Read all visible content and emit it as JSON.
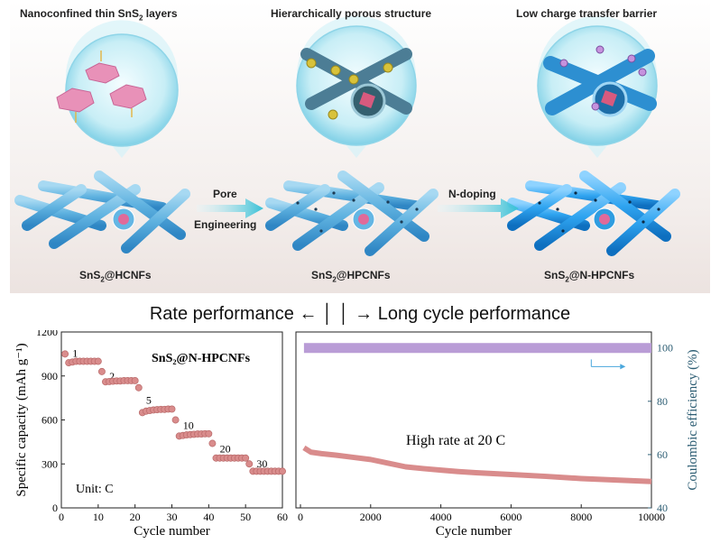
{
  "panels": [
    {
      "title_main": "Nanoconfined thin SnS",
      "title_sub": "2",
      "title_tail": " layers",
      "material_pre": "SnS",
      "material_sub": "2",
      "material_post": "@HCNFs"
    },
    {
      "title_main": "Hierarchically porous structure",
      "title_sub": "",
      "title_tail": "",
      "material_pre": "SnS",
      "material_sub": "2",
      "material_post": "@HPCNFs"
    },
    {
      "title_main": "Low charge transfer barrier",
      "title_sub": "",
      "title_tail": "",
      "material_pre": "SnS",
      "material_sub": "2",
      "material_post": "@N-HPCNFs"
    }
  ],
  "steps": {
    "step1_line1": "Pore",
    "step1_line2": "Engineering",
    "step2": "N-doping"
  },
  "banner": {
    "text": "Rate performance ← │ │ → Long cycle performance"
  },
  "colors": {
    "scatter": "#d98c8c",
    "coulombic": "#b99cd6",
    "accent_blue": "#4aa7dc"
  },
  "chart_data": [
    {
      "type": "scatter",
      "title": "SnS₂@N-HPCNFs",
      "xlabel": "Cycle number",
      "ylabel": "Specific capacity (mAh g⁻¹)",
      "xlim": [
        0,
        60
      ],
      "ylim": [
        0,
        1200
      ],
      "xticks": [
        "0",
        "10",
        "20",
        "30",
        "40",
        "50",
        "60"
      ],
      "yticks": [
        "0",
        "300",
        "600",
        "900",
        "1200"
      ],
      "annotation": "Unit: C",
      "rate_labels": [
        {
          "label": "1",
          "x": 3,
          "y": 1030
        },
        {
          "label": "2",
          "x": 13,
          "y": 875
        },
        {
          "label": "5",
          "x": 23,
          "y": 710
        },
        {
          "label": "10",
          "x": 33,
          "y": 540
        },
        {
          "label": "20",
          "x": 43,
          "y": 378
        },
        {
          "label": "30",
          "x": 53,
          "y": 278
        }
      ],
      "series": [
        {
          "x": [
            1,
            2,
            3,
            4,
            5,
            6,
            7,
            8,
            9,
            10,
            11,
            12,
            13,
            14,
            15,
            16,
            17,
            18,
            19,
            20,
            21,
            22,
            23,
            24,
            25,
            26,
            27,
            28,
            29,
            30,
            31,
            32,
            33,
            34,
            35,
            36,
            37,
            38,
            39,
            40,
            41,
            42,
            43,
            44,
            45,
            46,
            47,
            48,
            49,
            50,
            51,
            52,
            53,
            54,
            55,
            56,
            57,
            58,
            59,
            60
          ],
          "y": [
            1050,
            990,
            995,
            1000,
            1000,
            1000,
            1000,
            1000,
            1000,
            1000,
            930,
            860,
            862,
            864,
            866,
            866,
            868,
            868,
            868,
            868,
            820,
            650,
            660,
            664,
            668,
            670,
            672,
            672,
            674,
            674,
            600,
            490,
            494,
            498,
            500,
            502,
            504,
            504,
            506,
            506,
            440,
            340,
            340,
            340,
            340,
            340,
            340,
            340,
            340,
            340,
            300,
            250,
            250,
            250,
            250,
            250,
            250,
            250,
            250,
            250
          ]
        }
      ]
    },
    {
      "type": "scatter",
      "annotation": "High rate at 20 C",
      "xlabel": "Cycle number",
      "ylabel_right": "Coulombic efficiency (%)",
      "xlim": [
        0,
        10000
      ],
      "ylim": [
        0,
        1200
      ],
      "y2lim": [
        40,
        106
      ],
      "xticks": [
        "0",
        "2000",
        "4000",
        "6000",
        "8000",
        "10000"
      ],
      "y2ticks": [
        "40",
        "60",
        "80",
        "100"
      ],
      "series": [
        {
          "name": "capacity",
          "x": [
            100,
            300,
            600,
            1000,
            1500,
            2000,
            2500,
            3000,
            3500,
            4000,
            4500,
            5000,
            6000,
            7000,
            8000,
            9000,
            10000
          ],
          "y": [
            410,
            380,
            370,
            360,
            345,
            330,
            305,
            280,
            268,
            258,
            248,
            240,
            228,
            215,
            200,
            190,
            180
          ]
        },
        {
          "name": "coulombic",
          "x": [
            100,
            1000,
            2000,
            3000,
            4000,
            5000,
            6000,
            7000,
            8000,
            9000,
            10000
          ],
          "y": [
            100,
            100,
            100,
            100,
            100,
            100,
            100,
            100,
            100,
            100,
            100
          ]
        }
      ]
    }
  ]
}
